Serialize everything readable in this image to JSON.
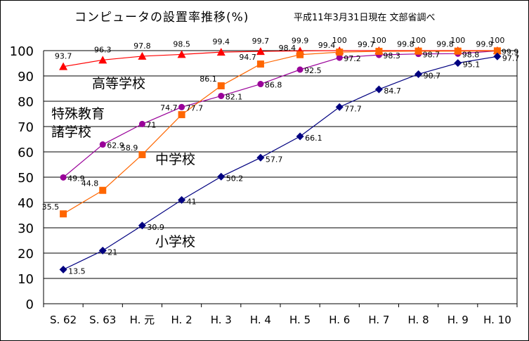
{
  "header": {
    "title": "コンピュータの設置率推移(%)",
    "source": "平成11年3月31日現在 文部省調べ"
  },
  "series_labels": {
    "high": "高等学校",
    "special_1": "特殊教育",
    "special_2": "諸学校",
    "junior": "中学校",
    "elementary": "小学校"
  },
  "chart_data": {
    "type": "line",
    "title": "コンピュータの設置率推移(%)",
    "categories": [
      "S. 62",
      "S. 63",
      "H. 元",
      "H. 2",
      "H. 3",
      "H. 4",
      "H. 5",
      "H. 6",
      "H. 7",
      "H. 8",
      "H. 9",
      "H. 10"
    ],
    "ylim": [
      0,
      100
    ],
    "yticks": [
      0,
      10,
      20,
      30,
      40,
      50,
      60,
      70,
      80,
      90,
      100
    ],
    "grid": true,
    "series": [
      {
        "name": "高等学校",
        "marker": "triangle",
        "color": "#ff0000",
        "marker_color": "#ff0000",
        "values": [
          93.7,
          96.3,
          97.8,
          98.5,
          99.4,
          99.7,
          99.9,
          100,
          100,
          100,
          100,
          100
        ]
      },
      {
        "name": "特殊教育諸学校",
        "marker": "circle",
        "color": "#990099",
        "marker_color": "#990099",
        "values": [
          49.9,
          62.9,
          71,
          77.7,
          82.1,
          86.8,
          92.5,
          97.2,
          98.3,
          98.7,
          98.8,
          99.9
        ]
      },
      {
        "name": "中学校",
        "marker": "square",
        "color": "#ff6600",
        "marker_color": "#ff6600",
        "values": [
          35.5,
          44.8,
          58.9,
          74.7,
          86.1,
          94.7,
          98.4,
          99.4,
          99.7,
          99.8,
          99.8,
          99.9
        ]
      },
      {
        "name": "小学校",
        "marker": "diamond",
        "color": "#000080",
        "marker_color": "#000080",
        "values": [
          13.5,
          21,
          30.9,
          41,
          50.2,
          57.7,
          66.1,
          77.7,
          84.7,
          90.7,
          95.1,
          97.7
        ]
      }
    ]
  }
}
